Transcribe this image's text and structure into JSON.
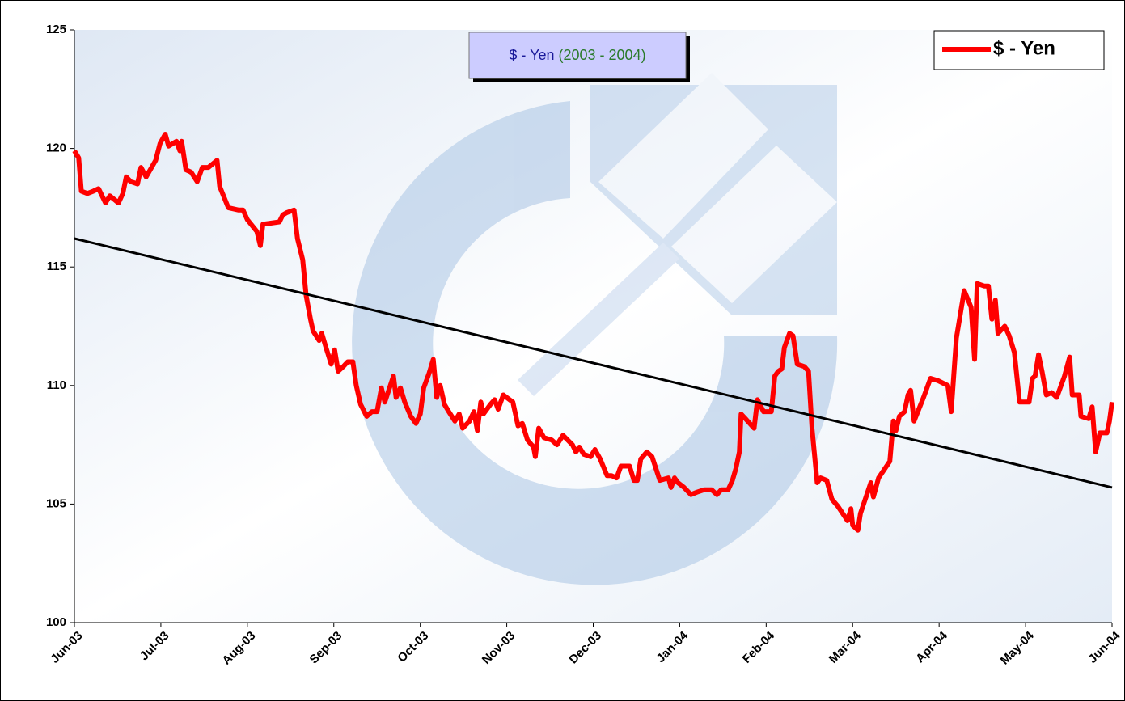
{
  "chart_data": {
    "type": "line",
    "title": "$ - Yen",
    "subtitle": "(2003 - 2004)",
    "xlim": [
      0,
      12
    ],
    "xticks": [
      {
        "value": 0,
        "label": "Jun-03"
      },
      {
        "value": 1,
        "label": "Jul-03"
      },
      {
        "value": 2,
        "label": "Aug-03"
      },
      {
        "value": 3,
        "label": "Sep-03"
      },
      {
        "value": 4,
        "label": "Oct-03"
      },
      {
        "value": 5,
        "label": "Nov-03"
      },
      {
        "value": 6,
        "label": "Dec-03"
      },
      {
        "value": 7,
        "label": "Jan-04"
      },
      {
        "value": 8,
        "label": "Feb-04"
      },
      {
        "value": 9,
        "label": "Mar-04"
      },
      {
        "value": 10,
        "label": "Apr-04"
      },
      {
        "value": 11,
        "label": "May-04"
      },
      {
        "value": 12,
        "label": "Jun-04"
      }
    ],
    "ylim": [
      100,
      125
    ],
    "yticks": [
      100,
      105,
      110,
      115,
      120,
      125
    ],
    "legend": "top-right",
    "series": [
      {
        "name": "$ - Yen",
        "color": "#ff0000",
        "x": [
          0,
          0.05,
          0.08,
          0.15,
          0.22,
          0.28,
          0.36,
          0.41,
          0.51,
          0.56,
          0.6,
          0.65,
          0.73,
          0.77,
          0.83,
          0.94,
          0.99,
          1.05,
          1.09,
          1.18,
          1.22,
          1.24,
          1.29,
          1.35,
          1.42,
          1.48,
          1.55,
          1.65,
          1.68,
          1.78,
          1.9,
          1.95,
          2.0,
          2.11,
          2.15,
          2.18,
          2.37,
          2.41,
          2.46,
          2.54,
          2.58,
          2.64,
          2.68,
          2.73,
          2.76,
          2.83,
          2.86,
          2.91,
          2.97,
          3.01,
          3.05,
          3.11,
          3.16,
          3.22,
          3.26,
          3.31,
          3.38,
          3.44,
          3.5,
          3.55,
          3.59,
          3.69,
          3.72,
          3.77,
          3.82,
          3.89,
          3.95,
          4.0,
          4.04,
          4.1,
          4.15,
          4.19,
          4.23,
          4.28,
          4.33,
          4.4,
          4.45,
          4.49,
          4.57,
          4.62,
          4.66,
          4.7,
          4.73,
          4.81,
          4.86,
          4.9,
          4.96,
          5.07,
          5.13,
          5.18,
          5.24,
          5.31,
          5.33,
          5.37,
          5.43,
          5.52,
          5.58,
          5.65,
          5.76,
          5.8,
          5.84,
          5.89,
          5.97,
          6.02,
          6.08,
          6.16,
          6.21,
          6.27,
          6.32,
          6.42,
          6.47,
          6.51,
          6.55,
          6.62,
          6.68,
          6.77,
          6.87,
          6.9,
          6.94,
          6.98,
          7.05,
          7.13,
          7.2,
          7.28,
          7.37,
          7.43,
          7.48,
          7.56,
          7.61,
          7.65,
          7.69,
          7.71,
          7.76,
          7.86,
          7.9,
          7.97,
          8.06,
          8.1,
          8.14,
          8.18,
          8.21,
          8.27,
          8.31,
          8.36,
          8.44,
          8.49,
          8.53,
          8.59,
          8.63,
          8.7,
          8.76,
          8.83,
          8.94,
          8.98,
          9.0,
          9.06,
          9.09,
          9.21,
          9.24,
          9.3,
          9.43,
          9.47,
          9.5,
          9.54,
          9.6,
          9.64,
          9.67,
          9.71,
          9.82,
          9.9,
          9.99,
          10.1,
          10.14,
          10.2,
          10.29,
          10.37,
          10.41,
          10.44,
          10.52,
          10.57,
          10.61,
          10.65,
          10.68,
          10.76,
          10.81,
          10.87,
          10.93,
          11.04,
          11.08,
          11.11,
          11.15,
          11.19,
          11.24,
          11.3,
          11.36,
          11.45,
          11.51,
          11.54,
          11.62,
          11.64,
          11.73,
          11.77,
          11.81,
          11.86,
          11.94,
          11.97,
          12.0
        ],
        "values": [
          119.9,
          119.6,
          118.2,
          118.1,
          118.2,
          118.3,
          117.7,
          118.0,
          117.7,
          118.1,
          118.8,
          118.6,
          118.5,
          119.2,
          118.8,
          119.5,
          120.2,
          120.6,
          120.1,
          120.3,
          119.9,
          120.3,
          119.1,
          119.0,
          118.6,
          119.2,
          119.2,
          119.5,
          118.4,
          117.5,
          117.4,
          117.4,
          117.0,
          116.5,
          115.9,
          116.8,
          116.9,
          117.2,
          117.3,
          117.4,
          116.2,
          115.3,
          113.8,
          112.8,
          112.3,
          111.9,
          112.2,
          111.6,
          110.9,
          111.5,
          110.6,
          110.8,
          111.0,
          111.0,
          110.0,
          109.2,
          108.7,
          108.9,
          108.9,
          109.9,
          109.3,
          110.4,
          109.5,
          109.9,
          109.3,
          108.7,
          108.4,
          108.8,
          109.9,
          110.5,
          111.1,
          109.5,
          110.0,
          109.2,
          108.9,
          108.5,
          108.8,
          108.2,
          108.5,
          108.9,
          108.1,
          109.3,
          108.8,
          109.2,
          109.4,
          109.0,
          109.6,
          109.3,
          108.3,
          108.4,
          107.7,
          107.4,
          107.0,
          108.2,
          107.8,
          107.7,
          107.5,
          107.9,
          107.5,
          107.2,
          107.4,
          107.1,
          107.0,
          107.3,
          106.9,
          106.2,
          106.2,
          106.1,
          106.6,
          106.6,
          106.0,
          106.0,
          106.9,
          107.2,
          107.0,
          106.0,
          106.1,
          105.7,
          106.1,
          105.9,
          105.7,
          105.4,
          105.5,
          105.6,
          105.6,
          105.4,
          105.6,
          105.6,
          106.0,
          106.5,
          107.2,
          108.8,
          108.6,
          108.2,
          109.4,
          108.9,
          108.9,
          110.4,
          110.6,
          110.7,
          111.6,
          112.2,
          112.1,
          110.9,
          110.8,
          110.6,
          108.2,
          105.9,
          106.1,
          106.0,
          105.2,
          104.9,
          104.3,
          104.8,
          104.1,
          103.9,
          104.6,
          105.9,
          105.3,
          106.1,
          106.8,
          108.5,
          108.1,
          108.7,
          108.9,
          109.6,
          109.8,
          108.5,
          109.5,
          110.3,
          110.2,
          110.0,
          108.9,
          112.0,
          114.0,
          113.3,
          111.1,
          114.3,
          114.2,
          114.2,
          112.8,
          113.6,
          112.2,
          112.5,
          112.1,
          111.4,
          109.3,
          109.3,
          110.3,
          110.4,
          111.3,
          110.6,
          109.6,
          109.7,
          109.5,
          110.4,
          111.2,
          109.6,
          109.6,
          108.7,
          108.6,
          109.1,
          107.2,
          108.0,
          108.0,
          108.5,
          109.3
        ]
      }
    ],
    "trendline": {
      "x": [
        0,
        12
      ],
      "values": [
        116.2,
        105.7
      ],
      "color": "#000000"
    }
  }
}
